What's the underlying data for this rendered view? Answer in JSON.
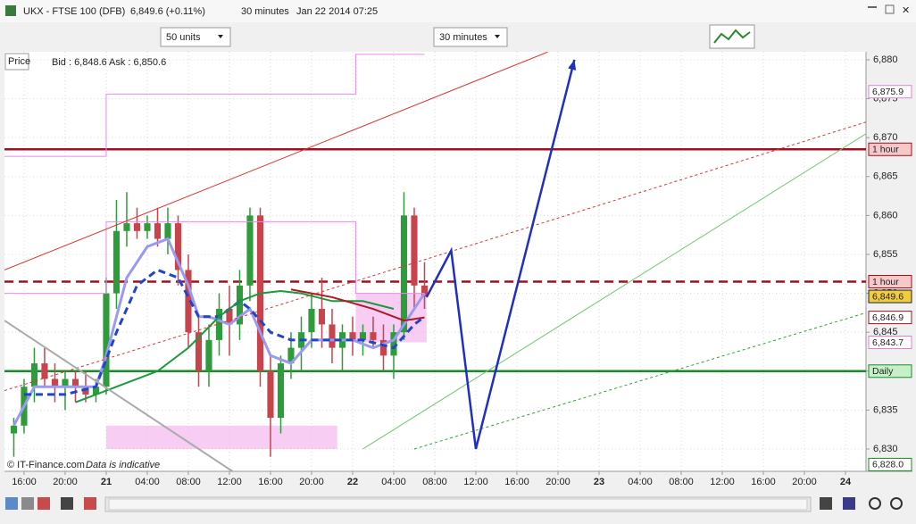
{
  "header": {
    "title": "UKX - FTSE 100 (DFB)",
    "price": "6,849.6 (+0.11%)",
    "interval": "30 minutes",
    "date": "Jan 22 2014 07:25"
  },
  "toolbar": {
    "units": "50 units",
    "timeframe": "30 minutes"
  },
  "info": {
    "label": "Price",
    "bid": "Bid : 6,848.6",
    "ask": "Ask : 6,850.6"
  },
  "footer": {
    "source": "© IT-Finance.com",
    "note": "Data is indicative"
  },
  "chart_data": {
    "type": "candlestick",
    "xlim": [
      -1.91,
      82
    ],
    "ylim": [
      6827.13,
      6881.03
    ],
    "grid": true,
    "xticks": [
      {
        "value": 0,
        "label": "16:00"
      },
      {
        "value": 4,
        "label": "20:00"
      },
      {
        "value": 8,
        "label": "21"
      },
      {
        "value": 12,
        "label": "04:00"
      },
      {
        "value": 16,
        "label": "08:00"
      },
      {
        "value": 20,
        "label": "12:00"
      },
      {
        "value": 24,
        "label": "16:00"
      },
      {
        "value": 28,
        "label": "20:00"
      },
      {
        "value": 32,
        "label": "22"
      },
      {
        "value": 36,
        "label": "04:00"
      },
      {
        "value": 40,
        "label": "08:00"
      },
      {
        "value": 44,
        "label": "12:00"
      },
      {
        "value": 48,
        "label": "16:00"
      },
      {
        "value": 52,
        "label": "20:00"
      },
      {
        "value": 56,
        "label": "23"
      },
      {
        "value": 60,
        "label": "04:00"
      },
      {
        "value": 64,
        "label": "08:00"
      },
      {
        "value": 68,
        "label": "12:00"
      },
      {
        "value": 72,
        "label": "16:00"
      },
      {
        "value": 76,
        "label": "20:00"
      },
      {
        "value": 80,
        "label": "24"
      }
    ],
    "yticks": [
      {
        "value": 6830,
        "label": "6,830"
      },
      {
        "value": 6835,
        "label": "6,835"
      },
      {
        "value": 6840,
        "label": "6,840"
      },
      {
        "value": 6845,
        "label": "6,845"
      },
      {
        "value": 6850,
        "label": "6,850"
      },
      {
        "value": 6855,
        "label": "6,855"
      },
      {
        "value": 6860,
        "label": "6,860"
      },
      {
        "value": 6865,
        "label": "6,865"
      },
      {
        "value": 6870,
        "label": "6,870"
      },
      {
        "value": 6875,
        "label": "6,875"
      },
      {
        "value": 6880,
        "label": "6,880"
      }
    ],
    "up_color": "#2e9c3a",
    "down_color": "#c8444c",
    "x": [
      -1,
      0,
      1,
      2,
      3,
      4,
      5,
      6,
      7,
      8,
      9,
      10,
      11,
      12,
      13,
      14,
      15,
      16,
      17,
      18,
      19,
      20,
      21,
      22,
      23,
      24,
      25,
      26,
      27,
      28,
      29,
      30,
      31,
      32,
      33,
      34,
      35,
      36,
      37,
      38,
      39
    ],
    "open": [
      6832,
      6833,
      6838,
      6841,
      6839,
      6838,
      6839,
      6838,
      6837,
      6838,
      6850,
      6858,
      6859,
      6858,
      6859,
      6857,
      6859,
      6853,
      6845,
      6840,
      6844,
      6848,
      6846,
      6851,
      6860,
      6840,
      6834,
      6841,
      6843,
      6845,
      6848,
      6846,
      6843,
      6845,
      6844,
      6845,
      6844,
      6842,
      6845,
      6860,
      6851
    ],
    "high": [
      6834,
      6839,
      6843,
      6843,
      6841,
      6840,
      6840,
      6840,
      6839,
      6852,
      6862,
      6863,
      6861,
      6860,
      6861,
      6861,
      6860,
      6855,
      6847,
      6846,
      6850,
      6851,
      6853,
      6861,
      6861,
      6842,
      6842,
      6845,
      6847,
      6850,
      6852,
      6848,
      6846,
      6847,
      6846,
      6847,
      6846,
      6846,
      6863,
      6861,
      6854
    ],
    "low": [
      6829,
      6832,
      6836,
      6838,
      6836,
      6835,
      6836,
      6836,
      6836,
      6837,
      6848,
      6856,
      6857,
      6857,
      6856,
      6855,
      6851,
      6843,
      6838,
      6838,
      6842,
      6842,
      6844,
      6849,
      6838,
      6829,
      6832,
      6839,
      6840,
      6843,
      6843,
      6841,
      6840,
      6842,
      6842,
      6843,
      6840,
      6839,
      6844,
      6848,
      6848
    ],
    "close": [
      6833,
      6838,
      6841,
      6839,
      6838,
      6839,
      6838,
      6837,
      6838,
      6850,
      6858,
      6859,
      6858,
      6859,
      6857,
      6859,
      6853,
      6845,
      6840,
      6844,
      6848,
      6846,
      6851,
      6860,
      6840,
      6834,
      6841,
      6843,
      6845,
      6848,
      6846,
      6843,
      6845,
      6844,
      6845,
      6844,
      6842,
      6845,
      6860,
      6851,
      6849.6
    ],
    "series": [
      {
        "color": "#9a9af0",
        "dash": "solid",
        "width": 3,
        "x": [
          -1,
          1,
          3,
          7,
          8,
          10,
          12,
          14,
          16,
          17,
          18,
          20,
          22,
          23,
          24,
          26,
          28,
          30,
          32,
          34,
          36,
          38,
          39
        ],
        "values": [
          6833,
          6838,
          6838,
          6838,
          6842,
          6852,
          6856,
          6857,
          6851,
          6847,
          6847,
          6846,
          6848,
          6845,
          6842,
          6841,
          6844,
          6844,
          6844,
          6843,
          6844,
          6848,
          6850
        ]
      },
      {
        "color": "#2244cc",
        "dash": "dashed",
        "width": 3,
        "x": [
          0,
          4,
          7,
          9,
          11,
          13,
          15,
          17,
          19,
          21,
          22,
          24,
          26,
          28,
          30,
          33,
          36,
          38,
          39
        ],
        "values": [
          6837,
          6837,
          6838,
          6845,
          6851,
          6853,
          6852,
          6847,
          6847,
          6849,
          6848,
          6845,
          6844,
          6844,
          6844,
          6844,
          6843,
          6846,
          6847
        ]
      },
      {
        "color": "#1a9a3a",
        "dash": "solid",
        "width": 2,
        "x": [
          5,
          9,
          13,
          16,
          19,
          21,
          23,
          25,
          27,
          30,
          33,
          36
        ],
        "values": [
          6836,
          6838,
          6840,
          6843,
          6847,
          6849,
          6850,
          6850.3,
          6850,
          6849,
          6849,
          6848
        ]
      },
      {
        "color": "#b0182a",
        "dash": "solid",
        "width": 2,
        "x": [
          26,
          30,
          34,
          37,
          39
        ],
        "values": [
          6850.5,
          6849.5,
          6848,
          6846.5,
          6846.9
        ]
      },
      {
        "color": "#ee88ee",
        "dash": "solid",
        "width": 1,
        "x": [
          -1.91,
          8,
          8,
          32.3,
          32.3,
          39
        ],
        "values": [
          6867.6,
          6867.6,
          6875.6,
          6875.6,
          6880.7,
          6880.7
        ]
      },
      {
        "color": "#ee88ee",
        "dash": "solid",
        "width": 1,
        "x": [
          -1.91,
          8,
          8,
          32.3,
          32.3,
          39
        ],
        "values": [
          6850,
          6850,
          6859.2,
          6859.2,
          6850,
          6850
        ]
      },
      {
        "color": "#e03030",
        "dash": "solid",
        "width": 1,
        "x": [
          -1.91,
          51
        ],
        "values": [
          6853,
          6881
        ]
      },
      {
        "color": "#e03030",
        "dash": "dotted",
        "width": 1,
        "x": [
          -1.91,
          82
        ],
        "values": [
          6837.5,
          6872
        ]
      },
      {
        "color": "#70c870",
        "dash": "solid",
        "width": 1,
        "x": [
          33,
          82
        ],
        "values": [
          6830,
          6870.5
        ]
      },
      {
        "color": "#30a030",
        "dash": "dotted",
        "width": 1,
        "x": [
          38,
          82
        ],
        "values": [
          6830,
          6847.5
        ]
      },
      {
        "color": "#aaaaaa",
        "dash": "solid",
        "width": 2,
        "x": [
          -1.91,
          20.3
        ],
        "values": [
          6846.5,
          6827.13
        ]
      },
      {
        "color": "#1f2fc0",
        "dash": "solid",
        "width": 2.5,
        "x": [
          39.2,
          41.6,
          44,
          53.6
        ],
        "values": [
          6849.5,
          6855.5,
          6830,
          6880
        ]
      }
    ],
    "boxes": [
      {
        "color": "#f4b8f0",
        "x": [
          8,
          30.5
        ],
        "values": [
          6833,
          6830
        ]
      },
      {
        "color": "#f4b8f0",
        "x": [
          32.3,
          39.2
        ],
        "values": [
          6850,
          6843.7
        ]
      }
    ],
    "tags": [
      {
        "value": 6875.9,
        "label": "6,875.9",
        "color": "#e080d0",
        "fill": "#ffffff"
      },
      {
        "value": 6868.5,
        "label": "1 hour",
        "color": "#a01020",
        "fill": "#f8c8c8",
        "line": "solid"
      },
      {
        "value": 6851.5,
        "label": "1 hour",
        "color": "#a01020",
        "fill": "#f8c8c8",
        "line": "dashed"
      },
      {
        "value": 6849.6,
        "label": "6,849.6",
        "color": "#222222",
        "fill": "#f0cc40"
      },
      {
        "value": 6846.9,
        "label": "6,846.9",
        "color": "#a01020",
        "fill": "#ffffff"
      },
      {
        "value": 6843.7,
        "label": "6,843.7",
        "color": "#e080d0",
        "fill": "#ffffff"
      },
      {
        "value": 6840,
        "label": "Daily",
        "color": "#1a8a2a",
        "fill": "#c8f0c8",
        "line": "solid"
      },
      {
        "value": 6828.0,
        "label": "6,828.0",
        "color": "#1a8a2a",
        "fill": "#ffffff"
      }
    ]
  }
}
